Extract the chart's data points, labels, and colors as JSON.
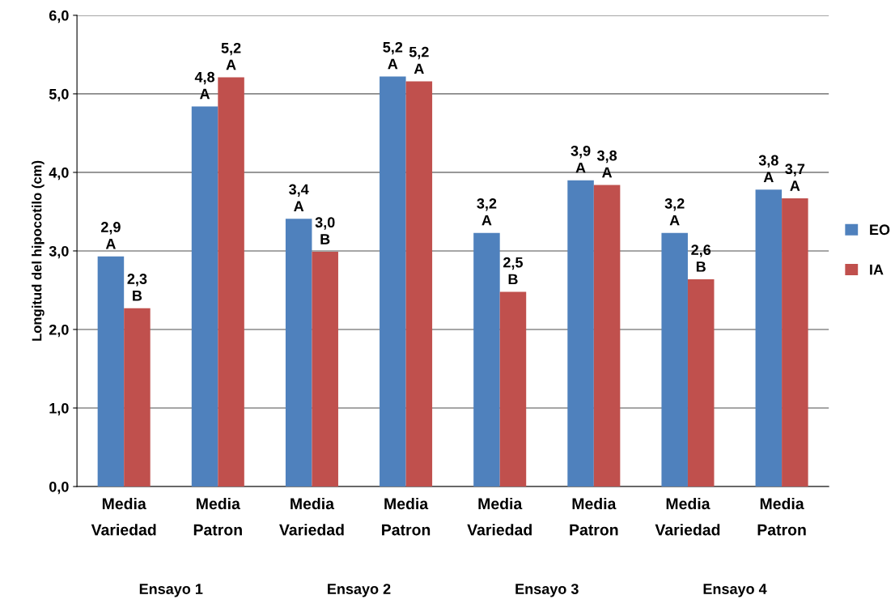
{
  "chart_data": {
    "type": "bar",
    "ylabel": "Longitud del hipocotilo (cm)",
    "categories": [
      "Media Variedad",
      "Media Patron",
      "Media Variedad",
      "Media Patron",
      "Media Variedad",
      "Media Patron",
      "Media Variedad",
      "Media Patron"
    ],
    "series": [
      {
        "name": "EO",
        "color": "#4f81bd",
        "values": [
          2.93,
          4.84,
          3.41,
          5.22,
          3.23,
          3.9,
          3.23,
          3.78
        ],
        "value_labels": [
          "2,9\nA",
          "4,8\nA",
          "3,4\nA",
          "5,2\nA",
          "3,2\nA",
          "3,9\nA",
          "3,2\nA",
          "3,8\nA"
        ]
      },
      {
        "name": "IA",
        "color": "#c0504d",
        "values": [
          2.27,
          5.21,
          2.99,
          5.16,
          2.48,
          3.84,
          2.64,
          3.67
        ],
        "value_labels": [
          "2,3\nB",
          "5,2\nA",
          "3,0\nB",
          "5,2\nA",
          "2,5\nB",
          "3,8\nA",
          "2,6\nB",
          "3,7\nA"
        ]
      }
    ],
    "annotations": [
      "Ensayo 1",
      "Ensayo 2",
      "Ensayo 3",
      "Ensayo 4"
    ],
    "ylim": [
      0,
      6
    ],
    "yticks": [
      {
        "value": 0,
        "label": "0,0"
      },
      {
        "value": 1,
        "label": "1,0"
      },
      {
        "value": 2,
        "label": "2,0"
      },
      {
        "value": 3,
        "label": "3,0"
      },
      {
        "value": 4,
        "label": "4,0"
      },
      {
        "value": 5,
        "label": "5,0"
      },
      {
        "value": 6,
        "label": "6,0"
      }
    ],
    "grid": "y",
    "legend": "right"
  }
}
